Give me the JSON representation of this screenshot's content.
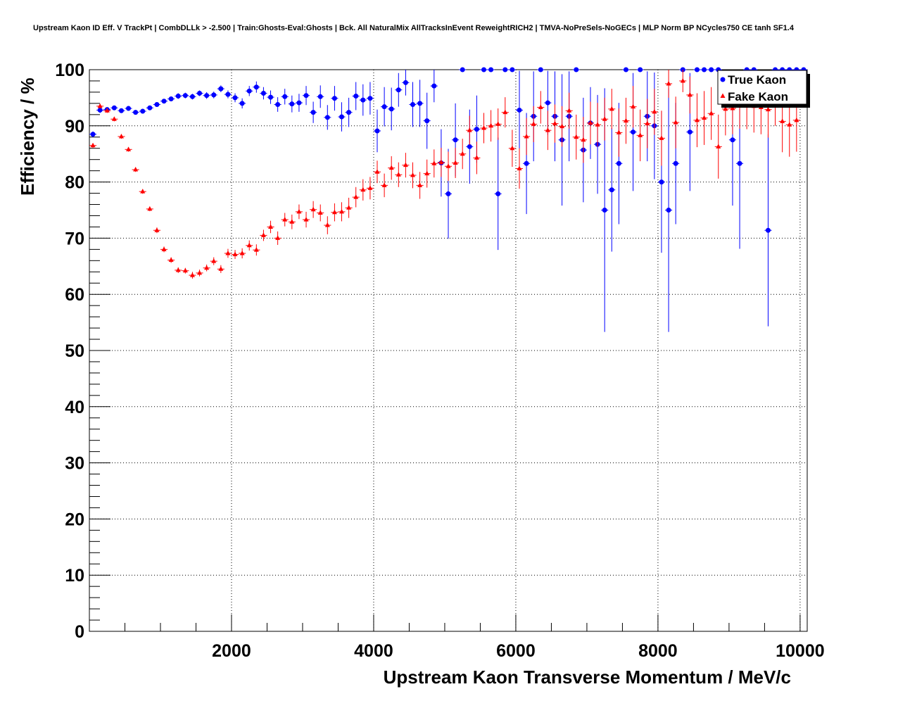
{
  "chart_data": {
    "type": "scatter",
    "title": "Upstream Kaon ID Eff. V TrackPt | CombDLLk > -2.500 | Train:Ghosts-Eval:Ghosts | Bck. All NaturalMix AllTracksInEvent ReweightRICH2 | TMVA-NoPreSels-NoGECs | MLP Norm BP NCycles750 CE tanh SF1.4",
    "xlabel": "Upstream Kaon Transverse Momentum / MeV/c",
    "ylabel": "Efficiency / %",
    "xlim": [
      0,
      10100
    ],
    "ylim": [
      0,
      100
    ],
    "grid": true,
    "legend_position": "top-right",
    "x_ticks": [
      "2000",
      "4000",
      "6000",
      "8000",
      "10000"
    ],
    "y_ticks": [
      "0",
      "10",
      "20",
      "30",
      "40",
      "50",
      "60",
      "70",
      "80",
      "90",
      "100"
    ],
    "bin_half_width": 50,
    "series": [
      {
        "name": "True Kaon",
        "color": "#0000ff",
        "marker": "circle",
        "points": [
          {
            "x": 50,
            "y": 88.5,
            "e": 0.5
          },
          {
            "x": 150,
            "y": 92.8,
            "e": 0.5
          },
          {
            "x": 250,
            "y": 92.9,
            "e": 0.4
          },
          {
            "x": 350,
            "y": 93.2,
            "e": 0.4
          },
          {
            "x": 450,
            "y": 92.7,
            "e": 0.4
          },
          {
            "x": 550,
            "y": 93.1,
            "e": 0.4
          },
          {
            "x": 650,
            "y": 92.4,
            "e": 0.4
          },
          {
            "x": 750,
            "y": 92.6,
            "e": 0.4
          },
          {
            "x": 850,
            "y": 93.2,
            "e": 0.4
          },
          {
            "x": 950,
            "y": 93.8,
            "e": 0.4
          },
          {
            "x": 1050,
            "y": 94.4,
            "e": 0.4
          },
          {
            "x": 1150,
            "y": 94.8,
            "e": 0.4
          },
          {
            "x": 1250,
            "y": 95.3,
            "e": 0.5
          },
          {
            "x": 1350,
            "y": 95.4,
            "e": 0.5
          },
          {
            "x": 1450,
            "y": 95.2,
            "e": 0.5
          },
          {
            "x": 1550,
            "y": 95.8,
            "e": 0.5
          },
          {
            "x": 1650,
            "y": 95.4,
            "e": 0.6
          },
          {
            "x": 1750,
            "y": 95.5,
            "e": 0.6
          },
          {
            "x": 1850,
            "y": 96.6,
            "e": 0.6
          },
          {
            "x": 1950,
            "y": 95.6,
            "e": 0.7
          },
          {
            "x": 2050,
            "y": 95.0,
            "e": 0.8
          },
          {
            "x": 2150,
            "y": 94.0,
            "e": 0.9
          },
          {
            "x": 2250,
            "y": 96.2,
            "e": 0.9
          },
          {
            "x": 2350,
            "y": 96.9,
            "e": 1.0
          },
          {
            "x": 2450,
            "y": 95.8,
            "e": 1.1
          },
          {
            "x": 2550,
            "y": 95.1,
            "e": 1.2
          },
          {
            "x": 2650,
            "y": 93.8,
            "e": 1.3
          },
          {
            "x": 2750,
            "y": 95.2,
            "e": 1.4
          },
          {
            "x": 2850,
            "y": 93.9,
            "e": 1.5
          },
          {
            "x": 2950,
            "y": 94.1,
            "e": 1.6
          },
          {
            "x": 3050,
            "y": 95.4,
            "e": 1.7
          },
          {
            "x": 3150,
            "y": 92.4,
            "e": 1.9
          },
          {
            "x": 3250,
            "y": 95.2,
            "e": 2.0
          },
          {
            "x": 3350,
            "y": 91.5,
            "e": 2.2
          },
          {
            "x": 3450,
            "y": 94.9,
            "e": 2.2
          },
          {
            "x": 3550,
            "y": 91.6,
            "e": 2.6
          },
          {
            "x": 3650,
            "y": 92.4,
            "e": 2.6
          },
          {
            "x": 3750,
            "y": 95.3,
            "e": 2.5
          },
          {
            "x": 3850,
            "y": 94.6,
            "e": 2.8
          },
          {
            "x": 3950,
            "y": 94.9,
            "e": 2.9
          },
          {
            "x": 4050,
            "y": 89.1,
            "e": 3.8
          },
          {
            "x": 4150,
            "y": 93.4,
            "e": 3.5
          },
          {
            "x": 4250,
            "y": 93.0,
            "e": 3.8
          },
          {
            "x": 4350,
            "y": 96.4,
            "e": 3.0
          },
          {
            "x": 4450,
            "y": 97.7,
            "e": 2.3
          },
          {
            "x": 4550,
            "y": 93.8,
            "e": 4.0
          },
          {
            "x": 4650,
            "y": 94.0,
            "e": 4.2
          },
          {
            "x": 4750,
            "y": 90.9,
            "e": 5.0
          },
          {
            "x": 4850,
            "y": 97.1,
            "e": 2.9
          },
          {
            "x": 4950,
            "y": 83.4,
            "e": 6.0
          },
          {
            "x": 5050,
            "y": 77.9,
            "e": 8.0
          },
          {
            "x": 5150,
            "y": 87.5,
            "e": 6.5
          },
          {
            "x": 5250,
            "y": 100,
            "e": 0
          },
          {
            "x": 5350,
            "y": 86.3,
            "e": 6.6
          },
          {
            "x": 5450,
            "y": 89.4,
            "e": 6.0
          },
          {
            "x": 5550,
            "y": 100,
            "e": 0
          },
          {
            "x": 5650,
            "y": 100,
            "e": 0
          },
          {
            "x": 5750,
            "y": 77.9,
            "e": 10.0
          },
          {
            "x": 5850,
            "y": 100,
            "e": 0
          },
          {
            "x": 5950,
            "y": 100,
            "e": 0
          },
          {
            "x": 6050,
            "y": 92.8,
            "e": 7.0
          },
          {
            "x": 6150,
            "y": 83.3,
            "e": 9.0
          },
          {
            "x": 6250,
            "y": 91.7,
            "e": 8.0
          },
          {
            "x": 6350,
            "y": 100,
            "e": 0
          },
          {
            "x": 6450,
            "y": 94.1,
            "e": 5.7
          },
          {
            "x": 6550,
            "y": 91.7,
            "e": 8.0
          },
          {
            "x": 6650,
            "y": 87.5,
            "e": 11.7
          },
          {
            "x": 6750,
            "y": 91.7,
            "e": 8.0
          },
          {
            "x": 6850,
            "y": 100,
            "e": 0
          },
          {
            "x": 6950,
            "y": 85.7,
            "e": 9.3
          },
          {
            "x": 7050,
            "y": 90.5,
            "e": 6.4
          },
          {
            "x": 7150,
            "y": 86.7,
            "e": 8.8
          },
          {
            "x": 7250,
            "y": 75.0,
            "e": 21.7
          },
          {
            "x": 7350,
            "y": 78.6,
            "e": 11.0
          },
          {
            "x": 7450,
            "y": 83.3,
            "e": 10.8
          },
          {
            "x": 7550,
            "y": 100,
            "e": 0
          },
          {
            "x": 7650,
            "y": 88.9,
            "e": 10.5
          },
          {
            "x": 7750,
            "y": 100,
            "e": 0
          },
          {
            "x": 7850,
            "y": 91.7,
            "e": 8.0
          },
          {
            "x": 7950,
            "y": 90.0,
            "e": 9.5
          },
          {
            "x": 8050,
            "y": 80.0,
            "e": 12.6
          },
          {
            "x": 8150,
            "y": 75.0,
            "e": 21.7
          },
          {
            "x": 8250,
            "y": 83.3,
            "e": 10.8
          },
          {
            "x": 8350,
            "y": 100,
            "e": 0
          },
          {
            "x": 8450,
            "y": 88.9,
            "e": 10.5
          },
          {
            "x": 8550,
            "y": 100,
            "e": 0
          },
          {
            "x": 8650,
            "y": 100,
            "e": 0
          },
          {
            "x": 8750,
            "y": 100,
            "e": 0
          },
          {
            "x": 8850,
            "y": 100,
            "e": 0
          },
          {
            "x": 9050,
            "y": 87.5,
            "e": 11.7
          },
          {
            "x": 9150,
            "y": 83.3,
            "e": 15.2
          },
          {
            "x": 9250,
            "y": 100,
            "e": 0
          },
          {
            "x": 9350,
            "y": 100,
            "e": 0
          },
          {
            "x": 9550,
            "y": 71.4,
            "e": 17.1
          },
          {
            "x": 9650,
            "y": 100,
            "e": 0
          },
          {
            "x": 9750,
            "y": 100,
            "e": 0
          },
          {
            "x": 9850,
            "y": 100,
            "e": 0
          },
          {
            "x": 9950,
            "y": 100,
            "e": 0
          },
          {
            "x": 10050,
            "y": 100,
            "e": 0
          }
        ]
      },
      {
        "name": "Fake Kaon",
        "color": "#ff0000",
        "marker": "triangle",
        "points": [
          {
            "x": 50,
            "y": 86.5,
            "e": 0.4
          },
          {
            "x": 150,
            "y": 93.5,
            "e": 0.4
          },
          {
            "x": 250,
            "y": 92.7,
            "e": 0.4
          },
          {
            "x": 350,
            "y": 91.2,
            "e": 0.4
          },
          {
            "x": 450,
            "y": 88.1,
            "e": 0.4
          },
          {
            "x": 550,
            "y": 85.8,
            "e": 0.4
          },
          {
            "x": 650,
            "y": 82.2,
            "e": 0.4
          },
          {
            "x": 750,
            "y": 78.3,
            "e": 0.4
          },
          {
            "x": 850,
            "y": 75.2,
            "e": 0.4
          },
          {
            "x": 950,
            "y": 71.4,
            "e": 0.5
          },
          {
            "x": 1050,
            "y": 68.0,
            "e": 0.5
          },
          {
            "x": 1150,
            "y": 66.1,
            "e": 0.5
          },
          {
            "x": 1250,
            "y": 64.3,
            "e": 0.5
          },
          {
            "x": 1350,
            "y": 64.2,
            "e": 0.5
          },
          {
            "x": 1450,
            "y": 63.4,
            "e": 0.6
          },
          {
            "x": 1550,
            "y": 63.8,
            "e": 0.6
          },
          {
            "x": 1650,
            "y": 64.7,
            "e": 0.6
          },
          {
            "x": 1750,
            "y": 65.9,
            "e": 0.7
          },
          {
            "x": 1850,
            "y": 64.5,
            "e": 0.7
          },
          {
            "x": 1950,
            "y": 67.3,
            "e": 0.8
          },
          {
            "x": 2050,
            "y": 67.1,
            "e": 0.8
          },
          {
            "x": 2150,
            "y": 67.3,
            "e": 0.9
          },
          {
            "x": 2250,
            "y": 68.7,
            "e": 0.9
          },
          {
            "x": 2350,
            "y": 67.9,
            "e": 1.0
          },
          {
            "x": 2450,
            "y": 70.5,
            "e": 1.0
          },
          {
            "x": 2550,
            "y": 72.0,
            "e": 1.1
          },
          {
            "x": 2650,
            "y": 70.0,
            "e": 1.2
          },
          {
            "x": 2750,
            "y": 73.3,
            "e": 1.2
          },
          {
            "x": 2850,
            "y": 72.9,
            "e": 1.3
          },
          {
            "x": 2950,
            "y": 74.7,
            "e": 1.3
          },
          {
            "x": 3050,
            "y": 73.3,
            "e": 1.4
          },
          {
            "x": 3150,
            "y": 75.1,
            "e": 1.5
          },
          {
            "x": 3250,
            "y": 74.5,
            "e": 1.5
          },
          {
            "x": 3350,
            "y": 72.3,
            "e": 1.6
          },
          {
            "x": 3450,
            "y": 74.6,
            "e": 1.6
          },
          {
            "x": 3550,
            "y": 74.7,
            "e": 1.7
          },
          {
            "x": 3650,
            "y": 75.4,
            "e": 1.8
          },
          {
            "x": 3750,
            "y": 77.3,
            "e": 1.8
          },
          {
            "x": 3850,
            "y": 78.6,
            "e": 1.9
          },
          {
            "x": 3950,
            "y": 78.9,
            "e": 2.0
          },
          {
            "x": 4050,
            "y": 81.8,
            "e": 2.0
          },
          {
            "x": 4150,
            "y": 79.4,
            "e": 2.1
          },
          {
            "x": 4250,
            "y": 82.5,
            "e": 2.1
          },
          {
            "x": 4350,
            "y": 81.3,
            "e": 2.2
          },
          {
            "x": 4450,
            "y": 83.0,
            "e": 2.2
          },
          {
            "x": 4550,
            "y": 81.2,
            "e": 2.3
          },
          {
            "x": 4650,
            "y": 79.4,
            "e": 2.4
          },
          {
            "x": 4750,
            "y": 81.5,
            "e": 2.5
          },
          {
            "x": 4850,
            "y": 83.3,
            "e": 2.5
          },
          {
            "x": 4950,
            "y": 83.5,
            "e": 2.6
          },
          {
            "x": 5050,
            "y": 82.8,
            "e": 2.6
          },
          {
            "x": 5150,
            "y": 83.4,
            "e": 2.7
          },
          {
            "x": 5250,
            "y": 85.0,
            "e": 2.7
          },
          {
            "x": 5350,
            "y": 89.2,
            "e": 2.6
          },
          {
            "x": 5450,
            "y": 84.3,
            "e": 2.9
          },
          {
            "x": 5550,
            "y": 89.6,
            "e": 2.7
          },
          {
            "x": 5650,
            "y": 90.0,
            "e": 2.8
          },
          {
            "x": 5750,
            "y": 90.3,
            "e": 2.8
          },
          {
            "x": 5850,
            "y": 92.4,
            "e": 2.7
          },
          {
            "x": 5950,
            "y": 86.0,
            "e": 3.3
          },
          {
            "x": 6050,
            "y": 82.4,
            "e": 3.6
          },
          {
            "x": 6150,
            "y": 88.1,
            "e": 3.3
          },
          {
            "x": 6250,
            "y": 90.3,
            "e": 3.2
          },
          {
            "x": 6350,
            "y": 93.3,
            "e": 2.9
          },
          {
            "x": 6450,
            "y": 89.2,
            "e": 3.5
          },
          {
            "x": 6550,
            "y": 90.4,
            "e": 3.4
          },
          {
            "x": 6650,
            "y": 89.9,
            "e": 3.6
          },
          {
            "x": 6750,
            "y": 92.7,
            "e": 3.2
          },
          {
            "x": 6850,
            "y": 88.0,
            "e": 4.0
          },
          {
            "x": 6950,
            "y": 87.5,
            "e": 4.1
          },
          {
            "x": 7050,
            "y": 90.5,
            "e": 3.8
          },
          {
            "x": 7150,
            "y": 90.2,
            "e": 3.9
          },
          {
            "x": 7250,
            "y": 91.2,
            "e": 3.8
          },
          {
            "x": 7350,
            "y": 93.0,
            "e": 3.6
          },
          {
            "x": 7450,
            "y": 88.8,
            "e": 4.3
          },
          {
            "x": 7550,
            "y": 90.9,
            "e": 4.1
          },
          {
            "x": 7650,
            "y": 93.4,
            "e": 3.7
          },
          {
            "x": 7750,
            "y": 88.3,
            "e": 4.6
          },
          {
            "x": 7850,
            "y": 90.4,
            "e": 4.4
          },
          {
            "x": 7950,
            "y": 92.5,
            "e": 4.1
          },
          {
            "x": 8050,
            "y": 87.8,
            "e": 4.9
          },
          {
            "x": 8150,
            "y": 97.5,
            "e": 2.5
          },
          {
            "x": 8250,
            "y": 90.6,
            "e": 4.6
          },
          {
            "x": 8350,
            "y": 98.0,
            "e": 2.0
          },
          {
            "x": 8450,
            "y": 95.5,
            "e": 3.3
          },
          {
            "x": 8550,
            "y": 91.0,
            "e": 4.8
          },
          {
            "x": 8650,
            "y": 91.4,
            "e": 4.8
          },
          {
            "x": 8750,
            "y": 92.2,
            "e": 4.7
          },
          {
            "x": 8850,
            "y": 86.3,
            "e": 5.7
          },
          {
            "x": 8950,
            "y": 93.0,
            "e": 4.7
          },
          {
            "x": 9050,
            "y": 93.1,
            "e": 4.6
          },
          {
            "x": 9150,
            "y": 94.0,
            "e": 4.5
          },
          {
            "x": 9250,
            "y": 94.0,
            "e": 4.6
          },
          {
            "x": 9350,
            "y": 93.5,
            "e": 4.7
          },
          {
            "x": 9450,
            "y": 93.3,
            "e": 4.8
          },
          {
            "x": 9550,
            "y": 92.9,
            "e": 5.0
          },
          {
            "x": 9650,
            "y": 94.5,
            "e": 4.5
          },
          {
            "x": 9750,
            "y": 90.8,
            "e": 5.5
          },
          {
            "x": 9850,
            "y": 90.2,
            "e": 5.7
          },
          {
            "x": 9950,
            "y": 91.0,
            "e": 5.6
          }
        ]
      }
    ]
  }
}
